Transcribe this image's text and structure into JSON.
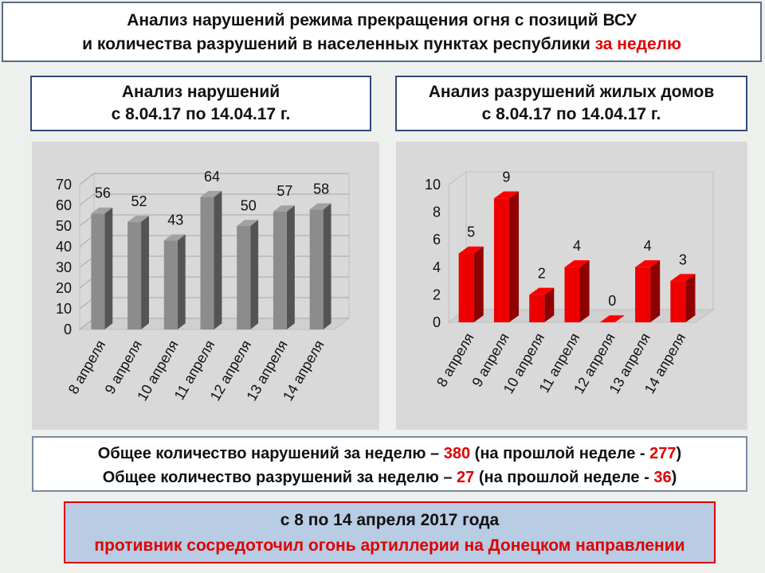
{
  "header": {
    "line1": "Анализ нарушений режима прекращения огня с позиций ВСУ",
    "line2": "и количества разрушений в населенных пунктах республики",
    "line2_highlight": "за неделю"
  },
  "chart_data": [
    {
      "type": "bar",
      "title": [
        "Анализ нарушений",
        "с 8.04.17 по 14.04.17 г."
      ],
      "categories": [
        "8 апреля",
        "9 апреля",
        "10 апреля",
        "11 апреля",
        "12 апреля",
        "13 апреля",
        "14 апреля"
      ],
      "values": [
        56,
        52,
        43,
        64,
        50,
        57,
        58
      ],
      "color": "#8c8c8c",
      "ylim": [
        0,
        70
      ],
      "yticks": [
        0,
        10,
        20,
        30,
        40,
        50,
        60,
        70
      ],
      "grid": true
    },
    {
      "type": "bar",
      "title": [
        "Анализ разрушений жилых домов",
        "с 8.04.17 по 14.04.17 г."
      ],
      "categories": [
        "8 апреля",
        "9 апреля",
        "10 апреля",
        "11 апреля",
        "12 апреля",
        "13 апреля",
        "14 апреля"
      ],
      "values": [
        5,
        9,
        2,
        4,
        0,
        4,
        3
      ],
      "color": "#ee0000",
      "ylim": [
        0,
        10
      ],
      "yticks": [
        0,
        2,
        4,
        6,
        8,
        10
      ],
      "grid": false
    }
  ],
  "summary": {
    "line1": [
      "Общее количество нарушений за неделю –",
      380,
      "(на прошлой неделе -",
      277,
      ")"
    ],
    "line2": [
      "Общее количество разрушений за неделю –",
      27,
      "(на прошлой неделе -",
      36,
      ")"
    ]
  },
  "footer": {
    "line1": "с 8 по 14 апреля 2017 года",
    "line2": "противник сосредоточил огонь артиллерии на Донецком направлении"
  }
}
